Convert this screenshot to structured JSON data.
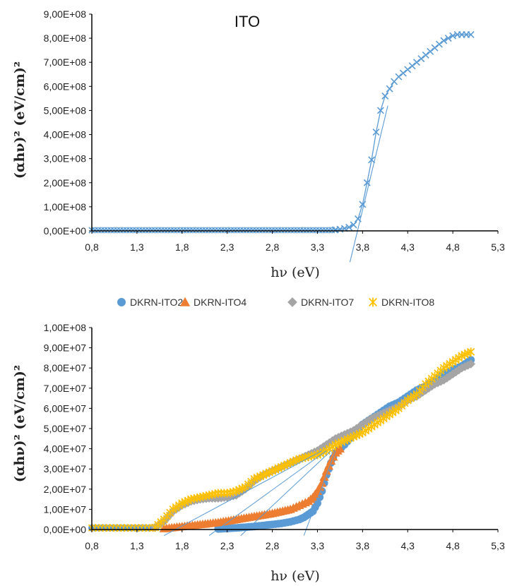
{
  "chart_data": [
    {
      "type": "scatter",
      "title": "ITO",
      "xlabel": "hν (eV)",
      "ylabel": "(αhν)² (eV/cm)²",
      "xlim": [
        0.8,
        5.3
      ],
      "ylim": [
        0,
        900000000
      ],
      "x_ticks": [
        0.8,
        1.3,
        1.8,
        2.3,
        2.8,
        3.3,
        3.8,
        4.3,
        4.8,
        5.3
      ],
      "x_tick_labels": [
        "0,8",
        "1,3",
        "1,8",
        "2,3",
        "2,8",
        "3,3",
        "3,8",
        "4,3",
        "4,8",
        "5,3"
      ],
      "y_ticks": [
        0,
        100000000,
        200000000,
        300000000,
        400000000,
        500000000,
        600000000,
        700000000,
        800000000,
        900000000
      ],
      "y_tick_labels": [
        "0,00E+00",
        "1,00E+08",
        "2,00E+08",
        "3,00E+08",
        "4,00E+08",
        "5,00E+08",
        "6,00E+08",
        "7,00E+08",
        "8,00E+08",
        "9,00E+08"
      ],
      "grid": false,
      "series": [
        {
          "marker": "x",
          "color": "#5b9bd5",
          "x": [
            3.5,
            3.55,
            3.6,
            3.65,
            3.7,
            3.75,
            3.8,
            3.85,
            3.9,
            3.95,
            4.0,
            4.05,
            4.1,
            4.15,
            4.2,
            4.25,
            4.3,
            4.35,
            4.4,
            4.45,
            4.5,
            4.55,
            4.6,
            4.65,
            4.7,
            4.75,
            4.8,
            4.85,
            4.9,
            4.95,
            5.0
          ],
          "y": [
            5000000,
            7000000,
            10000000,
            15000000,
            25000000,
            50000000,
            110000000,
            200000000,
            295000000,
            410000000,
            500000000,
            560000000,
            590000000,
            620000000,
            640000000,
            655000000,
            670000000,
            685000000,
            700000000,
            715000000,
            730000000,
            745000000,
            760000000,
            775000000,
            790000000,
            800000000,
            810000000,
            815000000,
            815000000,
            815000000,
            815000000
          ]
        }
      ],
      "tangent_lines": [
        {
          "color": "#5b9bd5",
          "x1": 3.66,
          "y1": -130000000,
          "x2": 4.08,
          "y2": 520000000
        }
      ]
    },
    {
      "type": "scatter",
      "xlabel": "hν (eV)",
      "ylabel": "(αhν)² (eV/cm)²",
      "xlim": [
        0.8,
        5.3
      ],
      "ylim": [
        0,
        100000000
      ],
      "x_ticks": [
        0.8,
        1.3,
        1.8,
        2.3,
        2.8,
        3.3,
        3.8,
        4.3,
        4.8,
        5.3
      ],
      "x_tick_labels": [
        "0,8",
        "1,3",
        "1,8",
        "2,3",
        "2,8",
        "3,3",
        "3,8",
        "4,3",
        "4,8",
        "5,3"
      ],
      "y_ticks": [
        0,
        10000000,
        20000000,
        30000000,
        40000000,
        50000000,
        60000000,
        70000000,
        80000000,
        90000000,
        100000000
      ],
      "y_tick_labels": [
        "0,00E+00",
        "1,00E+07",
        "2,00E+07",
        "3,00E+07",
        "4,00E+07",
        "5,00E+07",
        "6,00E+07",
        "7,00E+07",
        "8,00E+07",
        "9,00E+07",
        "1,00E+08"
      ],
      "grid": false,
      "legend_position": "top",
      "series": [
        {
          "name": "DKRN-ITO2",
          "marker": "circle",
          "color": "#5b9bd5",
          "x": [
            2.2,
            2.4,
            2.6,
            2.8,
            2.9,
            3.0,
            3.1,
            3.15,
            3.2,
            3.25,
            3.3,
            3.35,
            3.4,
            3.45,
            3.5,
            3.6,
            3.7,
            3.8,
            3.9,
            4.0,
            4.1,
            4.2,
            4.3,
            4.4,
            4.5,
            4.6,
            4.7,
            4.8,
            4.9,
            5.0
          ],
          "y": [
            300000,
            800000,
            1500000,
            2500000,
            3000000,
            3800000,
            5000000,
            6000000,
            7500000,
            9000000,
            13000000,
            19000000,
            27000000,
            33000000,
            38000000,
            42000000,
            47000000,
            52000000,
            55000000,
            58000000,
            61000000,
            63000000,
            66000000,
            69000000,
            71000000,
            74000000,
            77000000,
            79000000,
            81000000,
            84000000
          ]
        },
        {
          "name": "DKRN-ITO4",
          "marker": "triangle",
          "color": "#ed7d31",
          "x": [
            1.6,
            1.8,
            2.0,
            2.2,
            2.4,
            2.6,
            2.8,
            3.0,
            3.1,
            3.2,
            3.25,
            3.3,
            3.35,
            3.4,
            3.45,
            3.5,
            3.55
          ],
          "y": [
            500000,
            1500000,
            2500000,
            3500000,
            5000000,
            6500000,
            8000000,
            10000000,
            12000000,
            14000000,
            16000000,
            19000000,
            23000000,
            29000000,
            34000000,
            38000000,
            40000000
          ]
        },
        {
          "name": "DKRN-ITO7",
          "marker": "diamond",
          "color": "#a5a5a5",
          "x": [
            1.5,
            1.6,
            1.7,
            1.8,
            1.9,
            2.0,
            2.1,
            2.2,
            2.3,
            2.4,
            2.5,
            2.6,
            2.7,
            2.8,
            2.9,
            3.0,
            3.1,
            3.2,
            3.3,
            3.4,
            3.5,
            3.6,
            3.7,
            3.8,
            3.9,
            4.0,
            4.1,
            4.2,
            4.3,
            4.4,
            4.5,
            4.6,
            4.7,
            4.8,
            4.9,
            5.0
          ],
          "y": [
            1000000,
            4000000,
            9000000,
            12000000,
            14000000,
            15000000,
            15500000,
            15500000,
            16000000,
            17000000,
            20000000,
            24000000,
            27000000,
            29000000,
            31000000,
            33000000,
            35000000,
            37000000,
            39000000,
            42000000,
            45000000,
            47000000,
            49000000,
            52000000,
            55000000,
            57000000,
            59000000,
            61000000,
            64000000,
            66000000,
            69000000,
            72000000,
            74000000,
            77000000,
            80000000,
            82000000
          ]
        },
        {
          "name": "DKRN-ITO8",
          "marker": "star",
          "color": "#ffc000",
          "x": [
            1.5,
            1.6,
            1.7,
            1.8,
            1.9,
            2.0,
            2.1,
            2.2,
            2.3,
            2.4,
            2.5,
            2.6,
            2.7,
            2.8,
            2.9,
            3.0,
            3.1,
            3.2,
            3.3,
            3.4,
            3.5,
            3.6,
            3.7,
            3.8,
            3.9,
            4.0,
            4.1,
            4.2,
            4.3,
            4.4,
            4.5,
            4.6,
            4.7,
            4.8,
            4.9,
            5.0
          ],
          "y": [
            1000000,
            5000000,
            10000000,
            13000000,
            15000000,
            16000000,
            17000000,
            18000000,
            18000000,
            19000000,
            21000000,
            25000000,
            27000000,
            29000000,
            31000000,
            33000000,
            35000000,
            36000000,
            37000000,
            39000000,
            42000000,
            44000000,
            46000000,
            48000000,
            51000000,
            54000000,
            57000000,
            60000000,
            64000000,
            67000000,
            72000000,
            76000000,
            80000000,
            83000000,
            86000000,
            88000000
          ]
        }
      ],
      "flat_segment": {
        "x_from": 0.8,
        "x_to": 1.5,
        "y": 800000
      },
      "tangent_lines": [
        {
          "color": "#5b9bd5",
          "x1": 1.6,
          "y1": -3000000,
          "x2": 3.35,
          "y2": 39000000
        },
        {
          "color": "#5b9bd5",
          "x1": 2.1,
          "y1": -3000000,
          "x2": 3.4,
          "y2": 39000000
        },
        {
          "color": "#5b9bd5",
          "x1": 2.45,
          "y1": -3000000,
          "x2": 3.45,
          "y2": 39000000
        },
        {
          "color": "#5b9bd5",
          "x1": 3.15,
          "y1": -3000000,
          "x2": 3.5,
          "y2": 39000000
        }
      ]
    }
  ]
}
